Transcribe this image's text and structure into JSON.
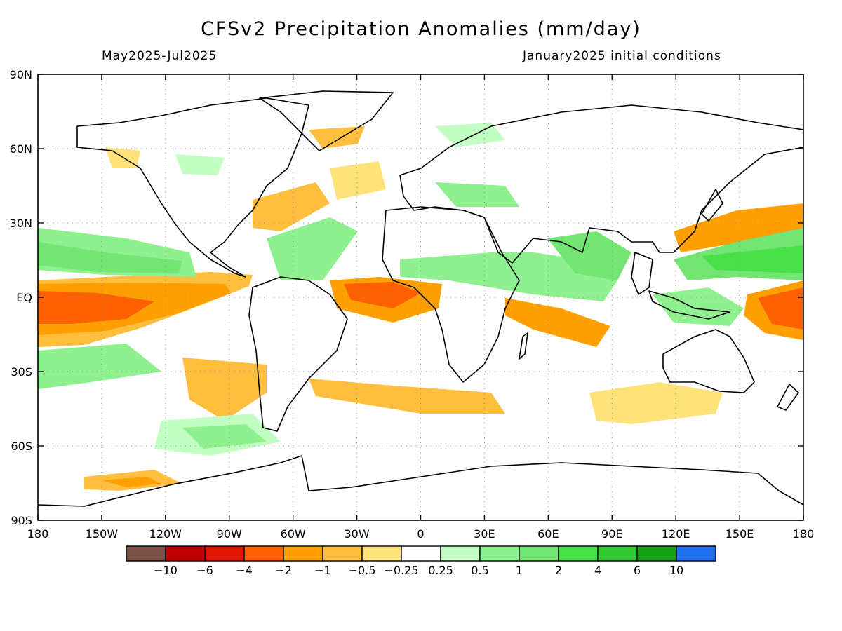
{
  "title": "CFSv2 Precipitation Anomalies (mm/day)",
  "subtitle_left": "May2025-Jul2025",
  "subtitle_right": "January2025 initial conditions",
  "axes": {
    "lat_labels": [
      "90N",
      "60N",
      "30N",
      "EQ",
      "30S",
      "60S",
      "90S"
    ],
    "lat_values": [
      90,
      60,
      30,
      0,
      -30,
      -60,
      -90
    ],
    "lon_labels": [
      "180",
      "150W",
      "120W",
      "90W",
      "60W",
      "30W",
      "0",
      "30E",
      "60E",
      "90E",
      "120E",
      "150E",
      "180"
    ],
    "lon_values": [
      -180,
      -150,
      -120,
      -90,
      -60,
      -30,
      0,
      30,
      60,
      90,
      120,
      150,
      180
    ],
    "grid": true
  },
  "legend": {
    "colors": [
      "#7a5047",
      "#c00000",
      "#e01500",
      "#ff6000",
      "#ff9f00",
      "#ffbe3e",
      "#ffe27a",
      "#ffffff",
      "#c2ffc2",
      "#8ef08e",
      "#72e572",
      "#48e048",
      "#34c834",
      "#16a016",
      "#1f6ef0"
    ],
    "labels": [
      "−10",
      "−6",
      "−4",
      "−2",
      "−1",
      "−0.5",
      "−0.25",
      "0.25",
      "0.5",
      "1",
      "2",
      "4",
      "6",
      "10"
    ]
  },
  "anomaly_colors": {
    "strong_dry": "#ff6000",
    "dry": "#ff9f00",
    "mod_dry": "#ffbe3e",
    "light_dry": "#ffe27a",
    "light_wet": "#c2ffc2",
    "mod_wet": "#8ef08e",
    "wet": "#72e572",
    "strong_wet": "#48e048"
  }
}
